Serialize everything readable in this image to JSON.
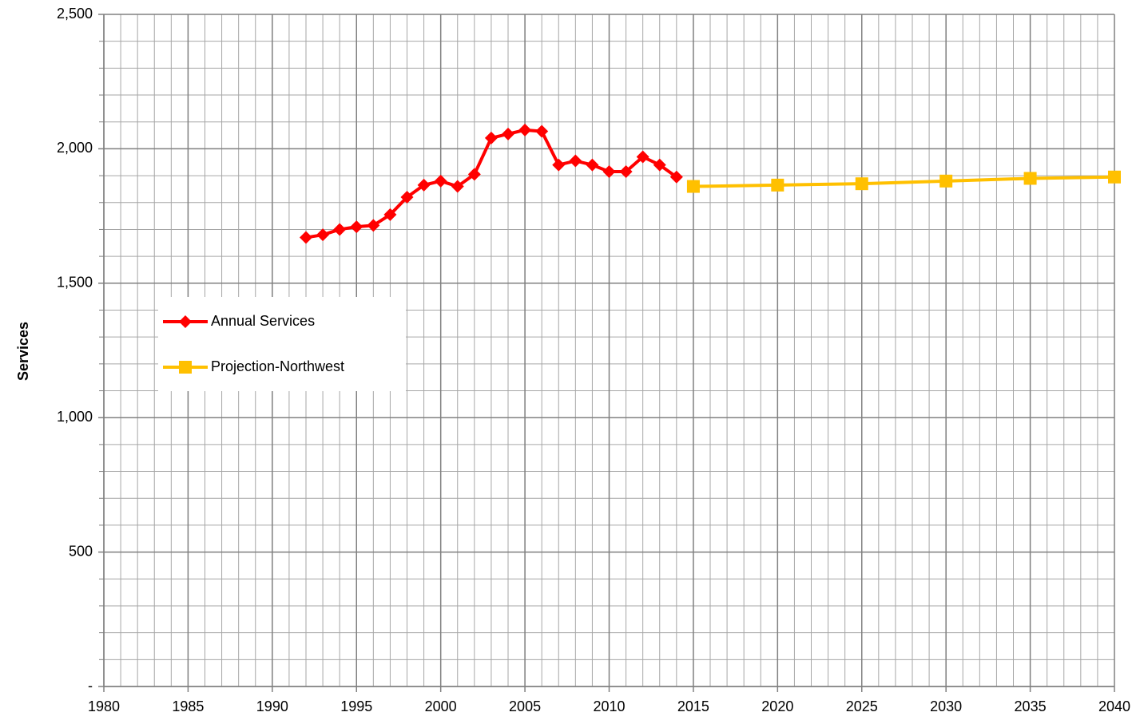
{
  "chart_data": {
    "type": "line",
    "ylabel": "Services",
    "xlim": [
      1980,
      2040
    ],
    "xticks": [
      1980,
      1985,
      1990,
      1995,
      2000,
      2005,
      2010,
      2015,
      2020,
      2025,
      2030,
      2035,
      2040
    ],
    "ylim": [
      0,
      2500
    ],
    "yticks": [
      {
        "value": 0,
        "label": "-"
      },
      500,
      {
        "value": 1000,
        "label": "1,000"
      },
      {
        "value": 1500,
        "label": "1,500"
      },
      {
        "value": 2000,
        "label": "2,000"
      },
      {
        "value": 2500,
        "label": "2,500"
      }
    ],
    "x_minor_step": 1,
    "y_minor_step": 100,
    "grid": true,
    "legend": "left",
    "series": [
      {
        "name": "Annual Services",
        "color": "#ff0000",
        "marker": "diamond",
        "x": [
          1992,
          1993,
          1994,
          1995,
          1996,
          1997,
          1998,
          1999,
          2000,
          2001,
          2002,
          2003,
          2004,
          2005,
          2006,
          2007,
          2008,
          2009,
          2010,
          2011,
          2012,
          2013,
          2014
        ],
        "values": [
          1670,
          1680,
          1700,
          1710,
          1715,
          1755,
          1820,
          1865,
          1880,
          1860,
          1905,
          2040,
          2055,
          2070,
          2065,
          1940,
          1955,
          1940,
          1915,
          1915,
          1970,
          1940,
          1895
        ]
      },
      {
        "name": "Projection-Northwest",
        "color": "#ffc000",
        "marker": "square",
        "x": [
          2015,
          2020,
          2025,
          2030,
          2035,
          2040
        ],
        "values": [
          1860,
          1865,
          1870,
          1880,
          1890,
          1895
        ]
      }
    ]
  }
}
